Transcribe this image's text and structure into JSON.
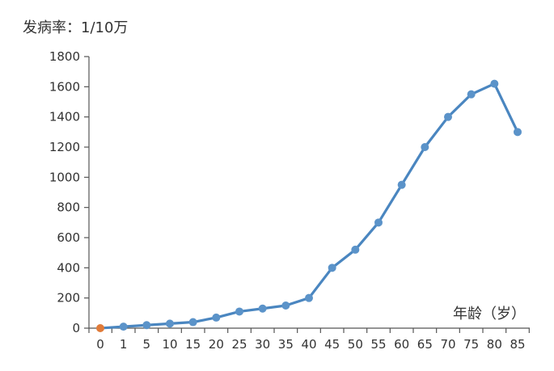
{
  "chart_data": {
    "type": "line",
    "ylabel": "发病率：1/10万",
    "xlabel": "年龄（岁）",
    "categories": [
      "0",
      "1",
      "5",
      "10",
      "15",
      "20",
      "25",
      "30",
      "35",
      "40",
      "45",
      "50",
      "55",
      "60",
      "65",
      "70",
      "75",
      "80",
      "85"
    ],
    "series": [
      {
        "values": [
          0,
          10,
          20,
          30,
          40,
          70,
          110,
          130,
          150,
          200,
          400,
          520,
          700,
          950,
          1200,
          1400,
          1550,
          1620,
          1300
        ]
      }
    ],
    "ylim": [
      0,
      1800
    ],
    "yticks": [
      0,
      200,
      400,
      600,
      800,
      1000,
      1200,
      1400,
      1600,
      1800
    ],
    "grid": false,
    "colors": {
      "line": "#4a86c0",
      "point": "#5b93c9",
      "first_point": "#e07b39",
      "axis": "#555555"
    }
  }
}
